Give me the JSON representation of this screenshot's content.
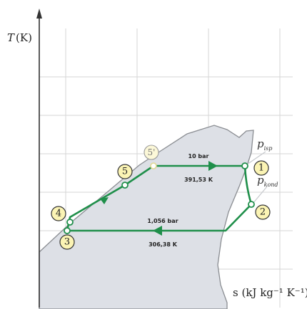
{
  "axes": {
    "y_symbol": "T",
    "y_unit": "(K)",
    "x_label": "s (kJ kg⁻¹ K⁻¹)"
  },
  "states": [
    {
      "label": "1"
    },
    {
      "label": "2"
    },
    {
      "label": "3"
    },
    {
      "label": "4"
    },
    {
      "label": "5"
    },
    {
      "label": "5'"
    }
  ],
  "high_side": {
    "pressure": "10 bar",
    "temperature": "391,53 K"
  },
  "low_side": {
    "pressure": "1,056 bar",
    "temperature": "306,38 K"
  },
  "isobars": [
    {
      "symbol": "p",
      "subscript": "isp"
    },
    {
      "symbol": "p",
      "subscript": "kond"
    }
  ]
}
